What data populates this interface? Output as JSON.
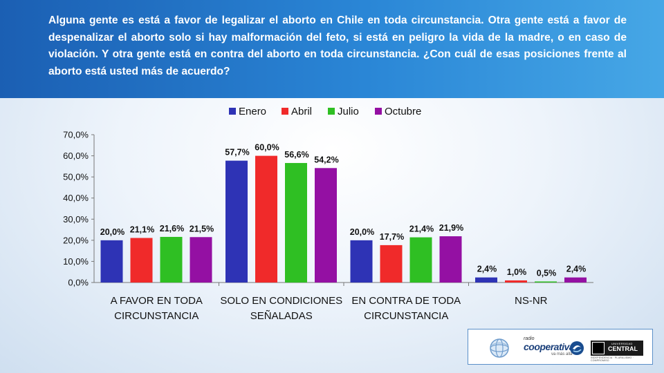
{
  "header": {
    "question": "Alguna gente es está a favor de legalizar el aborto en Chile en toda circunstancia. Otra gente está a favor de despenalizar el aborto solo si hay malformación del feto, si está en peligro la vida de la madre, o en caso de violación. Y otra gente está en contra del aborto en toda circunstancia. ¿Con cuál de esas posiciones frente al aborto está usted más de acuerdo?"
  },
  "colors": {
    "Enero": "#2e33b5",
    "Abril": "#f02a2a",
    "Julio": "#2fbf23",
    "Octubre": "#9410a3"
  },
  "chart_data": {
    "type": "bar",
    "categories": [
      [
        "A FAVOR EN TODA",
        "CIRCUNSTANCIA"
      ],
      [
        "SOLO EN CONDICIONES",
        "SEÑALADAS"
      ],
      [
        "EN CONTRA DE TODA",
        "CIRCUNSTANCIA"
      ],
      [
        "NS-NR"
      ]
    ],
    "series": [
      {
        "name": "Enero",
        "values": [
          20.0,
          57.7,
          20.0,
          2.4
        ],
        "labels": [
          "20,0%",
          "57,7%",
          "20,0%",
          "2,4%"
        ]
      },
      {
        "name": "Abril",
        "values": [
          21.1,
          60.0,
          17.7,
          1.0
        ],
        "labels": [
          "21,1%",
          "60,0%",
          "17,7%",
          "1,0%"
        ]
      },
      {
        "name": "Julio",
        "values": [
          21.6,
          56.6,
          21.4,
          0.5
        ],
        "labels": [
          "21,6%",
          "56,6%",
          "21,4%",
          "0,5%"
        ]
      },
      {
        "name": "Octubre",
        "values": [
          21.5,
          54.2,
          21.9,
          2.4
        ],
        "labels": [
          "21,5%",
          "54,2%",
          "21,9%",
          "2,4%"
        ]
      }
    ],
    "yticks": [
      "0,0%",
      "10,0%",
      "20,0%",
      "30,0%",
      "40,0%",
      "50,0%",
      "60,0%",
      "70,0%"
    ],
    "ylim": [
      0,
      70
    ],
    "grid": false,
    "legend_position": "top"
  },
  "logos": {
    "radio_label": "radio",
    "cooperativa": "cooperativa",
    "cooperativa_tagline": "va más allá",
    "uc_small": "UNIVERSIDAD",
    "uc_big": "CENTRAL",
    "uc_tagline": "INDEPENDENCIA · PLURALISMO · COMPROMISO"
  }
}
